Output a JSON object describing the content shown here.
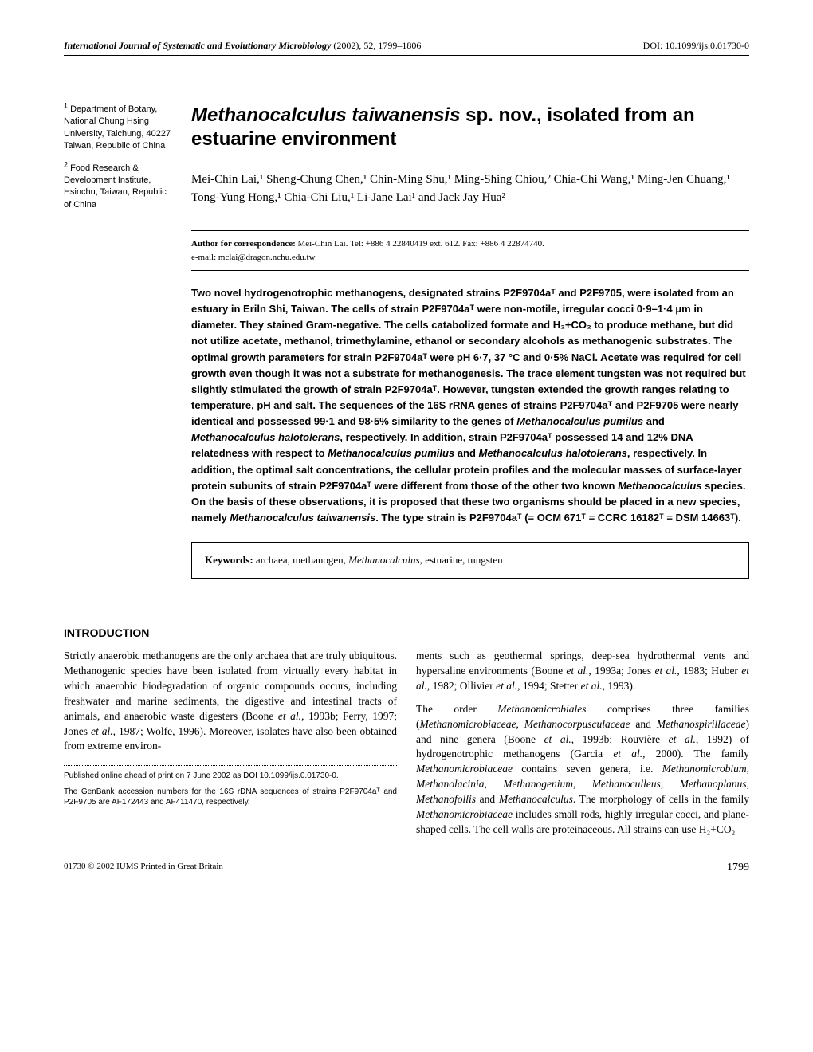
{
  "header": {
    "journal": "International Journal of Systematic and Evolutionary Microbiology",
    "year_pages": "(2002), 52, 1799–1806",
    "doi": "DOI: 10.1099/ijs.0.01730-0"
  },
  "title": {
    "species": "Methanocalculus taiwanensis",
    "rest": " sp. nov., isolated from an estuarine environment"
  },
  "affiliations": [
    {
      "num": "1",
      "text": "Department of Botany, National Chung Hsing University, Taichung, 40227 Taiwan, Republic of China"
    },
    {
      "num": "2",
      "text": "Food Research & Development Institute, Hsinchu, Taiwan, Republic of China"
    }
  ],
  "authors": "Mei-Chin Lai,¹ Sheng-Chung Chen,¹ Chin-Ming Shu,¹ Ming-Shing Chiou,² Chia-Chi Wang,¹ Ming-Jen Chuang,¹ Tong-Yung Hong,¹ Chia-Chi Liu,¹ Li-Jane Lai¹ and Jack Jay Hua²",
  "correspondence": {
    "label": "Author for correspondence:",
    "text": " Mei-Chin Lai. Tel: +886 4 22840419 ext. 612. Fax: +886 4 22874740.",
    "email": "e-mail: mclai@dragon.nchu.edu.tw"
  },
  "abstract": "Two novel hydrogenotrophic methanogens, designated strains P2F9704aᵀ and P2F9705, were isolated from an estuary in Eriln Shi, Taiwan. The cells of strain P2F9704aᵀ were non-motile, irregular cocci 0·9–1·4 μm in diameter. They stained Gram-negative. The cells catabolized formate and H₂+CO₂ to produce methane, but did not utilize acetate, methanol, trimethylamine, ethanol or secondary alcohols as methanogenic substrates. The optimal growth parameters for strain P2F9704aᵀ were pH 6·7, 37 °C and 0·5% NaCl. Acetate was required for cell growth even though it was not a substrate for methanogenesis. The trace element tungsten was not required but slightly stimulated the growth of strain P2F9704aᵀ. However, tungsten extended the growth ranges relating to temperature, pH and salt. The sequences of the 16S rRNA genes of strains P2F9704aᵀ and P2F9705 were nearly identical and possessed 99·1 and 98·5% similarity to the genes of Methanocalculus pumilus and Methanocalculus halotolerans, respectively. In addition, strain P2F9704aᵀ possessed 14 and 12% DNA relatedness with respect to Methanocalculus pumilus and Methanocalculus halotolerans, respectively. In addition, the optimal salt concentrations, the cellular protein profiles and the molecular masses of surface-layer protein subunits of strain P2F9704aᵀ were different from those of the other two known Methanocalculus species. On the basis of these observations, it is proposed that these two organisms should be placed in a new species, namely Methanocalculus taiwanensis. The type strain is P2F9704aᵀ (= OCM 671ᵀ = CCRC 16182ᵀ = DSM 14663ᵀ).",
  "keywords": {
    "label": "Keywords:",
    "text": " archaea, methanogen, Methanocalculus, estuarine, tungsten"
  },
  "section_heading": "INTRODUCTION",
  "body_p1": "Strictly anaerobic methanogens are the only archaea that are truly ubiquitous. Methanogenic species have been isolated from virtually every habitat in which anaerobic biodegradation of organic compounds occurs, including freshwater and marine sediments, the digestive and intestinal tracts of animals, and anaerobic waste digesters (Boone et al., 1993b; Ferry, 1997; Jones et al., 1987; Wolfe, 1996). Moreover, isolates have also been obtained from extreme environ-",
  "body_p1_cont": "ments such as geothermal springs, deep-sea hydrothermal vents and hypersaline environments (Boone et al., 1993a; Jones et al., 1983; Huber et al., 1982; Ollivier et al., 1994; Stetter et al., 1993).",
  "body_p2": "The order Methanomicrobiales comprises three families (Methanomicrobiaceae, Methanocorpusculaceae and Methanospirillaceae) and nine genera (Boone et al., 1993b; Rouvière et al., 1992) of hydrogenotrophic methanogens (Garcia et al., 2000). The family Methanomicrobiaceae contains seven genera, i.e. Methanomicrobium, Methanolacinia, Methanogenium, Methanoculleus, Methanoplanus, Methanofollis and Methanocalculus. The morphology of cells in the family Methanomicrobiaceae includes small rods, highly irregular cocci, and plane-shaped cells. The cell walls are proteinaceous. All strains can use H₂+CO₂",
  "footnotes": {
    "f1": "Published online ahead of print on 7 June 2002 as DOI 10.1099/ijs.0.01730-0.",
    "f2": "The GenBank accession numbers for the 16S rDNA sequences of strains P2F9704aᵀ and P2F9705 are AF172443 and AF411470, respectively."
  },
  "footer": {
    "left": "01730 © 2002 IUMS   Printed in Great Britain",
    "page": "1799"
  }
}
